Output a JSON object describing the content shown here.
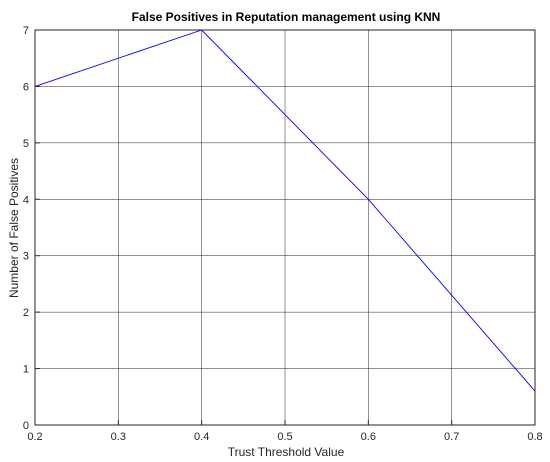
{
  "chart_data": {
    "type": "line",
    "title": "False Positives in Reputation management using KNN",
    "xlabel": "Trust Threshold Value",
    "ylabel": "Number of False Positives",
    "xlim": [
      0.2,
      0.8
    ],
    "ylim": [
      0,
      7
    ],
    "xticks": [
      "0.2",
      "0.3",
      "0.4",
      "0.5",
      "0.6",
      "0.7",
      "0.8"
    ],
    "yticks": [
      "0",
      "1",
      "2",
      "3",
      "4",
      "5",
      "6",
      "7"
    ],
    "grid": true,
    "series": [
      {
        "x": [
          0.2,
          0.4,
          0.6,
          0.8
        ],
        "y": [
          6,
          7,
          4,
          0.6
        ],
        "color": "#0000ff"
      }
    ]
  }
}
